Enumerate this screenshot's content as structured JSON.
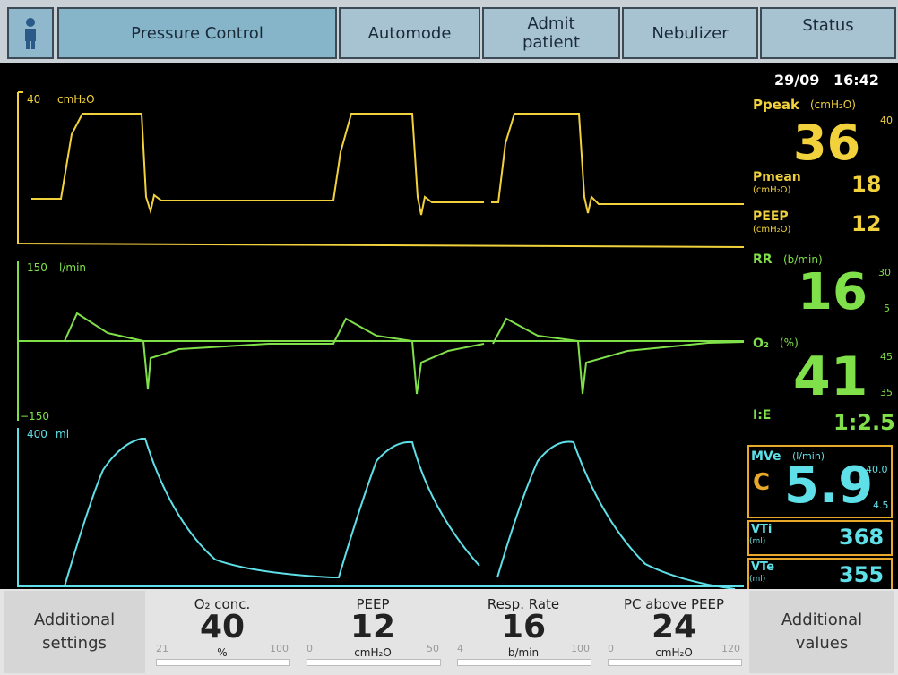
{
  "top_bar": {
    "buttons": [
      "Pressure Control",
      "Automode",
      "Admit patient",
      "Nebulizer",
      "Status"
    ]
  },
  "datetime": {
    "date": "29/09",
    "time": "16:42"
  },
  "waveforms": [
    {
      "max": "40",
      "unit": "cmH₂O"
    },
    {
      "max": "150",
      "unit": "l/min",
      "min": "−150"
    },
    {
      "max": "400",
      "unit": "ml"
    }
  ],
  "parameters": {
    "ppeak": {
      "label": "Ppeak",
      "unit": "(cmH₂O)",
      "value": "36",
      "limit": "40"
    },
    "pmean": {
      "label": "Pmean",
      "unit": "(cmH₂O)",
      "value": "18"
    },
    "peep": {
      "label": "PEEP",
      "unit": "(cmH₂O)",
      "value": "12"
    },
    "rr": {
      "label": "RR",
      "unit": "(b/min)",
      "value": "16",
      "high": "30",
      "low": "5"
    },
    "o2": {
      "label": "O₂",
      "unit": "(%)",
      "value": "41",
      "high": "45",
      "low": "35"
    },
    "ie": {
      "label": "I:E",
      "value": "1:2.5"
    },
    "mve": {
      "label": "MVe",
      "unit": "(l/min)",
      "mode": "C",
      "value": "5.9",
      "high": "40.0",
      "low": "4.5"
    },
    "vti": {
      "label": "VTi",
      "unit": "(ml)",
      "value": "368"
    },
    "vte": {
      "label": "VTe",
      "unit": "(ml)",
      "value": "355"
    }
  },
  "bottom": {
    "left": "Additional settings",
    "right": "Additional values",
    "controls": [
      {
        "label": "O₂ conc.",
        "value": "40",
        "unit": "%",
        "min": "21",
        "max": "100"
      },
      {
        "label": "PEEP",
        "value": "12",
        "unit": "cmH₂O",
        "min": "0",
        "max": "50"
      },
      {
        "label": "Resp. Rate",
        "value": "16",
        "unit": "b/min",
        "min": "4",
        "max": "100"
      },
      {
        "label": "PC above PEEP",
        "value": "24",
        "unit": "cmH₂O",
        "min": "0",
        "max": "120"
      }
    ]
  }
}
